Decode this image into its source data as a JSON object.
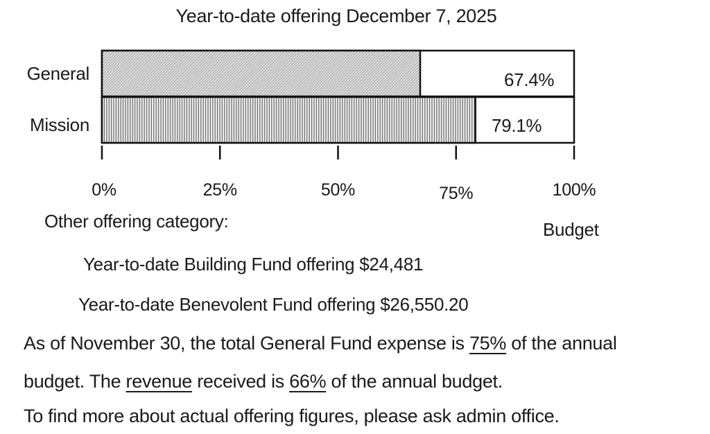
{
  "chart_data": {
    "type": "bar",
    "orientation": "horizontal",
    "title": "Year-to-date offering December 7, 2025",
    "categories": [
      "General",
      "Mission"
    ],
    "values": [
      67.4,
      79.1
    ],
    "value_labels": [
      "67.4%",
      "79.1%"
    ],
    "unit": "%",
    "xlim": [
      0,
      100
    ],
    "xticks": [
      0,
      25,
      50,
      75,
      100
    ],
    "xtick_labels": [
      "0%",
      "25%",
      "50%",
      "75%",
      "100%"
    ],
    "xlabel": "Budget",
    "ylabel": "",
    "grid": false,
    "legend": "none",
    "fill_patterns": [
      "diagonal-hatch",
      "vertical-lines"
    ]
  },
  "notes": {
    "other_heading": "Other offering category:",
    "building_fund": "Year-to-date Building Fund offering $24,481",
    "benevolent_fund": "Year-to-date Benevolent Fund offering $26,550.20",
    "expense_line": {
      "pre": "As of November 30, the total General Fund expense is ",
      "pct": "75%",
      "post": " of the annual"
    },
    "revenue_line": {
      "pre": "budget.  The ",
      "word": "revenue",
      "mid": " received is ",
      "pct": "66%",
      "post": " of the annual budget."
    },
    "contact_line": "To find more about actual offering figures, please ask admin office."
  }
}
